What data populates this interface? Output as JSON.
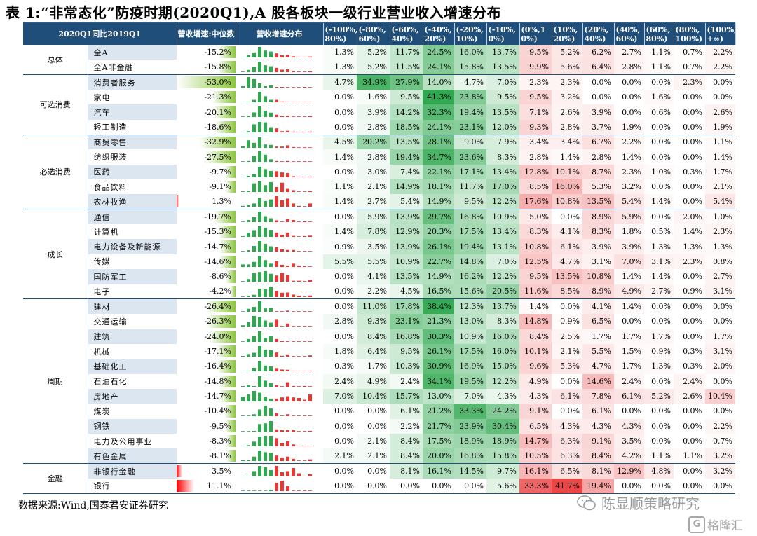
{
  "title": "表 1:“非常态化”防疫时期(2020Q1),A 股各板块一级行业营业收入增速分布",
  "header": {
    "col1": "2020Q1同比2019Q1",
    "col2": "营收增速:中位数",
    "col3": "营收增速分布",
    "bins": [
      "(-100%,\n80%)",
      "(-80%,\n60%)",
      "(-60%,\n40%)",
      "(-40%,\n20%)",
      "(-20%,\n10%)",
      "(-10%,\n0%)",
      "(0%,1\n0%)",
      "(10%,\n20%)",
      "(20%,\n40%)",
      "(40%,\n60%)",
      "(60%,\n80%)",
      "(80%,\n100%)",
      "(100%,\n+∞)"
    ]
  },
  "groups": [
    {
      "name": "总体",
      "rows": [
        {
          "name": "全A",
          "median": "-15.2%",
          "v": [
            1.3,
            5.2,
            11.7,
            24.5,
            16.0,
            13.7,
            9.5,
            5.2,
            6.2,
            2.7,
            1.1,
            0.7,
            2.2
          ]
        },
        {
          "name": "全A非金融",
          "median": "-15.8%",
          "v": [
            1.3,
            5.2,
            11.5,
            24.1,
            15.8,
            13.5,
            9.9,
            5.6,
            6.4,
            2.8,
            1.1,
            0.7,
            2.2
          ]
        }
      ]
    },
    {
      "name": "可选消费",
      "rows": [
        {
          "name": "消费者服务",
          "median": "-53.0%",
          "v": [
            4.7,
            34.9,
            27.9,
            14.0,
            4.7,
            7.0,
            2.3,
            2.3,
            0.0,
            0.0,
            0.0,
            2.3,
            0.0
          ]
        },
        {
          "name": "家电",
          "median": "-21.3%",
          "v": [
            0.0,
            1.6,
            9.5,
            41.3,
            23.8,
            9.5,
            9.5,
            3.2,
            0.0,
            0.0,
            1.6,
            0.0,
            0.0
          ]
        },
        {
          "name": "汽车",
          "median": "-20.1%",
          "v": [
            0.0,
            3.9,
            14.2,
            32.3,
            19.4,
            13.5,
            7.1,
            2.6,
            3.9,
            0.0,
            0.6,
            0.0,
            2.6
          ]
        },
        {
          "name": "轻工制造",
          "median": "-18.6%",
          "v": [
            0.0,
            2.8,
            18.5,
            24.1,
            23.1,
            12.0,
            9.3,
            2.8,
            3.7,
            1.9,
            0.0,
            0.0,
            1.9
          ]
        }
      ]
    },
    {
      "name": "必选消费",
      "rows": [
        {
          "name": "商贸零售",
          "median": "-32.9%",
          "v": [
            4.5,
            20.2,
            13.5,
            28.1,
            9.0,
            7.9,
            3.4,
            3.4,
            6.7,
            2.2,
            0.0,
            0.0,
            1.1
          ]
        },
        {
          "name": "纺织服装",
          "median": "-27.5%",
          "v": [
            1.4,
            2.8,
            19.4,
            34.7,
            23.6,
            8.3,
            2.8,
            1.4,
            2.8,
            1.4,
            0.0,
            0.0,
            1.4
          ]
        },
        {
          "name": "医药",
          "median": "-9.7%",
          "v": [
            0.0,
            3.0,
            7.4,
            22.1,
            17.1,
            13.4,
            12.8,
            10.1,
            8.7,
            2.3,
            1.0,
            0.3,
            1.7
          ]
        },
        {
          "name": "食品饮料",
          "median": "-9.1%",
          "v": [
            1.1,
            2.1,
            14.9,
            18.1,
            11.7,
            17.0,
            8.5,
            16.0,
            5.3,
            3.2,
            0.0,
            0.0,
            2.1
          ]
        },
        {
          "name": "农林牧渔",
          "median": "1.3%",
          "v": [
            1.4,
            2.7,
            5.4,
            14.9,
            9.5,
            12.2,
            17.6,
            10.8,
            13.5,
            5.4,
            1.4,
            0.0,
            5.4
          ]
        }
      ]
    },
    {
      "name": "成长",
      "rows": [
        {
          "name": "通信",
          "median": "-19.7%",
          "v": [
            0.0,
            5.9,
            13.9,
            29.7,
            16.8,
            10.9,
            5.0,
            0.0,
            8.9,
            5.9,
            0.0,
            2.0,
            1.0
          ]
        },
        {
          "name": "计算机",
          "median": "-15.3%",
          "v": [
            1.4,
            7.8,
            12.9,
            20.3,
            17.5,
            13.4,
            8.3,
            4.1,
            8.3,
            1.8,
            0.5,
            1.4,
            2.3
          ]
        },
        {
          "name": "电力设备及新能源",
          "median": "-14.7%",
          "v": [
            0.9,
            3.5,
            13.9,
            26.1,
            19.4,
            13.1,
            10.8,
            6.1,
            3.9,
            3.9,
            1.3,
            1.3,
            1.3
          ]
        },
        {
          "name": "传媒",
          "median": "-14.6%",
          "v": [
            5.5,
            5.5,
            10.9,
            22.7,
            14.8,
            7.0,
            12.5,
            4.7,
            3.1,
            7.0,
            3.1,
            2.3,
            0.8
          ]
        },
        {
          "name": "国防军工",
          "median": "-8.6%",
          "v": [
            0.0,
            4.1,
            13.5,
            14.9,
            16.2,
            12.2,
            9.5,
            13.5,
            10.8,
            1.4,
            1.4,
            0.0,
            2.7
          ]
        },
        {
          "name": "电子",
          "median": "-4.2%",
          "v": [
            0.0,
            2.2,
            4.5,
            16.5,
            15.6,
            20.5,
            11.6,
            8.5,
            8.9,
            4.9,
            2.7,
            0.9,
            3.1
          ]
        }
      ]
    },
    {
      "name": "周期",
      "rows": [
        {
          "name": "建材",
          "median": "-26.4%",
          "v": [
            0.0,
            11.0,
            17.8,
            38.4,
            12.3,
            13.7,
            1.4,
            0.0,
            4.1,
            1.4,
            0.0,
            0.0,
            0.0
          ]
        },
        {
          "name": "交通运输",
          "median": "-26.3%",
          "v": [
            2.8,
            9.3,
            23.1,
            21.3,
            13.0,
            8.3,
            14.8,
            0.9,
            6.5,
            0.0,
            0.0,
            0.0,
            0.0
          ]
        },
        {
          "name": "建筑",
          "median": "-24.0%",
          "v": [
            0.0,
            8.4,
            16.8,
            30.3,
            10.9,
            16.0,
            8.4,
            2.5,
            1.7,
            1.7,
            1.7,
            0.0,
            1.7
          ]
        },
        {
          "name": "机械",
          "median": "-17.1%",
          "v": [
            1.8,
            6.4,
            9.5,
            26.1,
            17.5,
            16.0,
            10.1,
            2.1,
            5.5,
            1.5,
            0.9,
            0.3,
            3.1
          ]
        },
        {
          "name": "基础化工",
          "median": "-16.4%",
          "v": [
            0.3,
            1.7,
            10.3,
            30.9,
            16.9,
            15.0,
            9.6,
            5.3,
            4.7,
            1.7,
            1.3,
            0.3,
            2.0
          ]
        },
        {
          "name": "石油石化",
          "median": "-14.8%",
          "v": [
            2.4,
            4.9,
            2.4,
            34.1,
            19.5,
            12.2,
            4.9,
            0.0,
            14.6,
            2.4,
            0.0,
            2.4,
            0.0
          ]
        },
        {
          "name": "房地产",
          "median": "-14.7%",
          "v": [
            7.0,
            10.4,
            15.7,
            13.0,
            7.0,
            4.3,
            4.3,
            6.1,
            7.8,
            6.1,
            5.2,
            2.6,
            10.4
          ]
        },
        {
          "name": "煤炭",
          "median": "-10.4%",
          "v": [
            0.0,
            0.0,
            6.1,
            21.2,
            33.3,
            24.2,
            9.1,
            0.0,
            6.1,
            0.0,
            0.0,
            0.0,
            0.0
          ]
        },
        {
          "name": "钢铁",
          "median": "-9.5%",
          "v": [
            0.0,
            0.0,
            2.2,
            21.7,
            23.9,
            30.4,
            6.5,
            4.3,
            4.3,
            4.3,
            0.0,
            0.0,
            2.2
          ]
        },
        {
          "name": "电力及公用事业",
          "median": "-8.3%",
          "v": [
            0.0,
            2.1,
            8.4,
            17.5,
            18.9,
            18.9,
            14.7,
            6.3,
            9.1,
            3.5,
            0.0,
            0.0,
            0.7
          ]
        },
        {
          "name": "有色金属",
          "median": "-8.1%",
          "v": [
            2.1,
            2.1,
            8.4,
            20.0,
            16.8,
            15.8,
            10.5,
            6.3,
            8.4,
            4.2,
            1.1,
            1.1,
            3.2
          ]
        }
      ]
    },
    {
      "name": "金融",
      "rows": [
        {
          "name": "非银行金融",
          "median": "3.5%",
          "v": [
            0.0,
            0.0,
            8.1,
            16.1,
            14.5,
            9.7,
            16.1,
            6.5,
            8.1,
            12.9,
            4.8,
            0.0,
            3.2
          ]
        },
        {
          "name": "银行",
          "median": "11.1%",
          "v": [
            0.0,
            0.0,
            0.0,
            0.0,
            0.0,
            5.6,
            33.3,
            41.7,
            19.4,
            0.0,
            0.0,
            0.0,
            0.0
          ]
        }
      ]
    }
  ],
  "source": "数据来源:Wind,国泰君安证券研究",
  "logo_text": "陈显顺策略研究",
  "logo2_text": "格隆汇",
  "logo2_mark": "G",
  "colors": {
    "header_bg": "#1e4e79",
    "green": "#2fa84f",
    "red": "#e53935",
    "name_hl": "#dce6f1"
  }
}
